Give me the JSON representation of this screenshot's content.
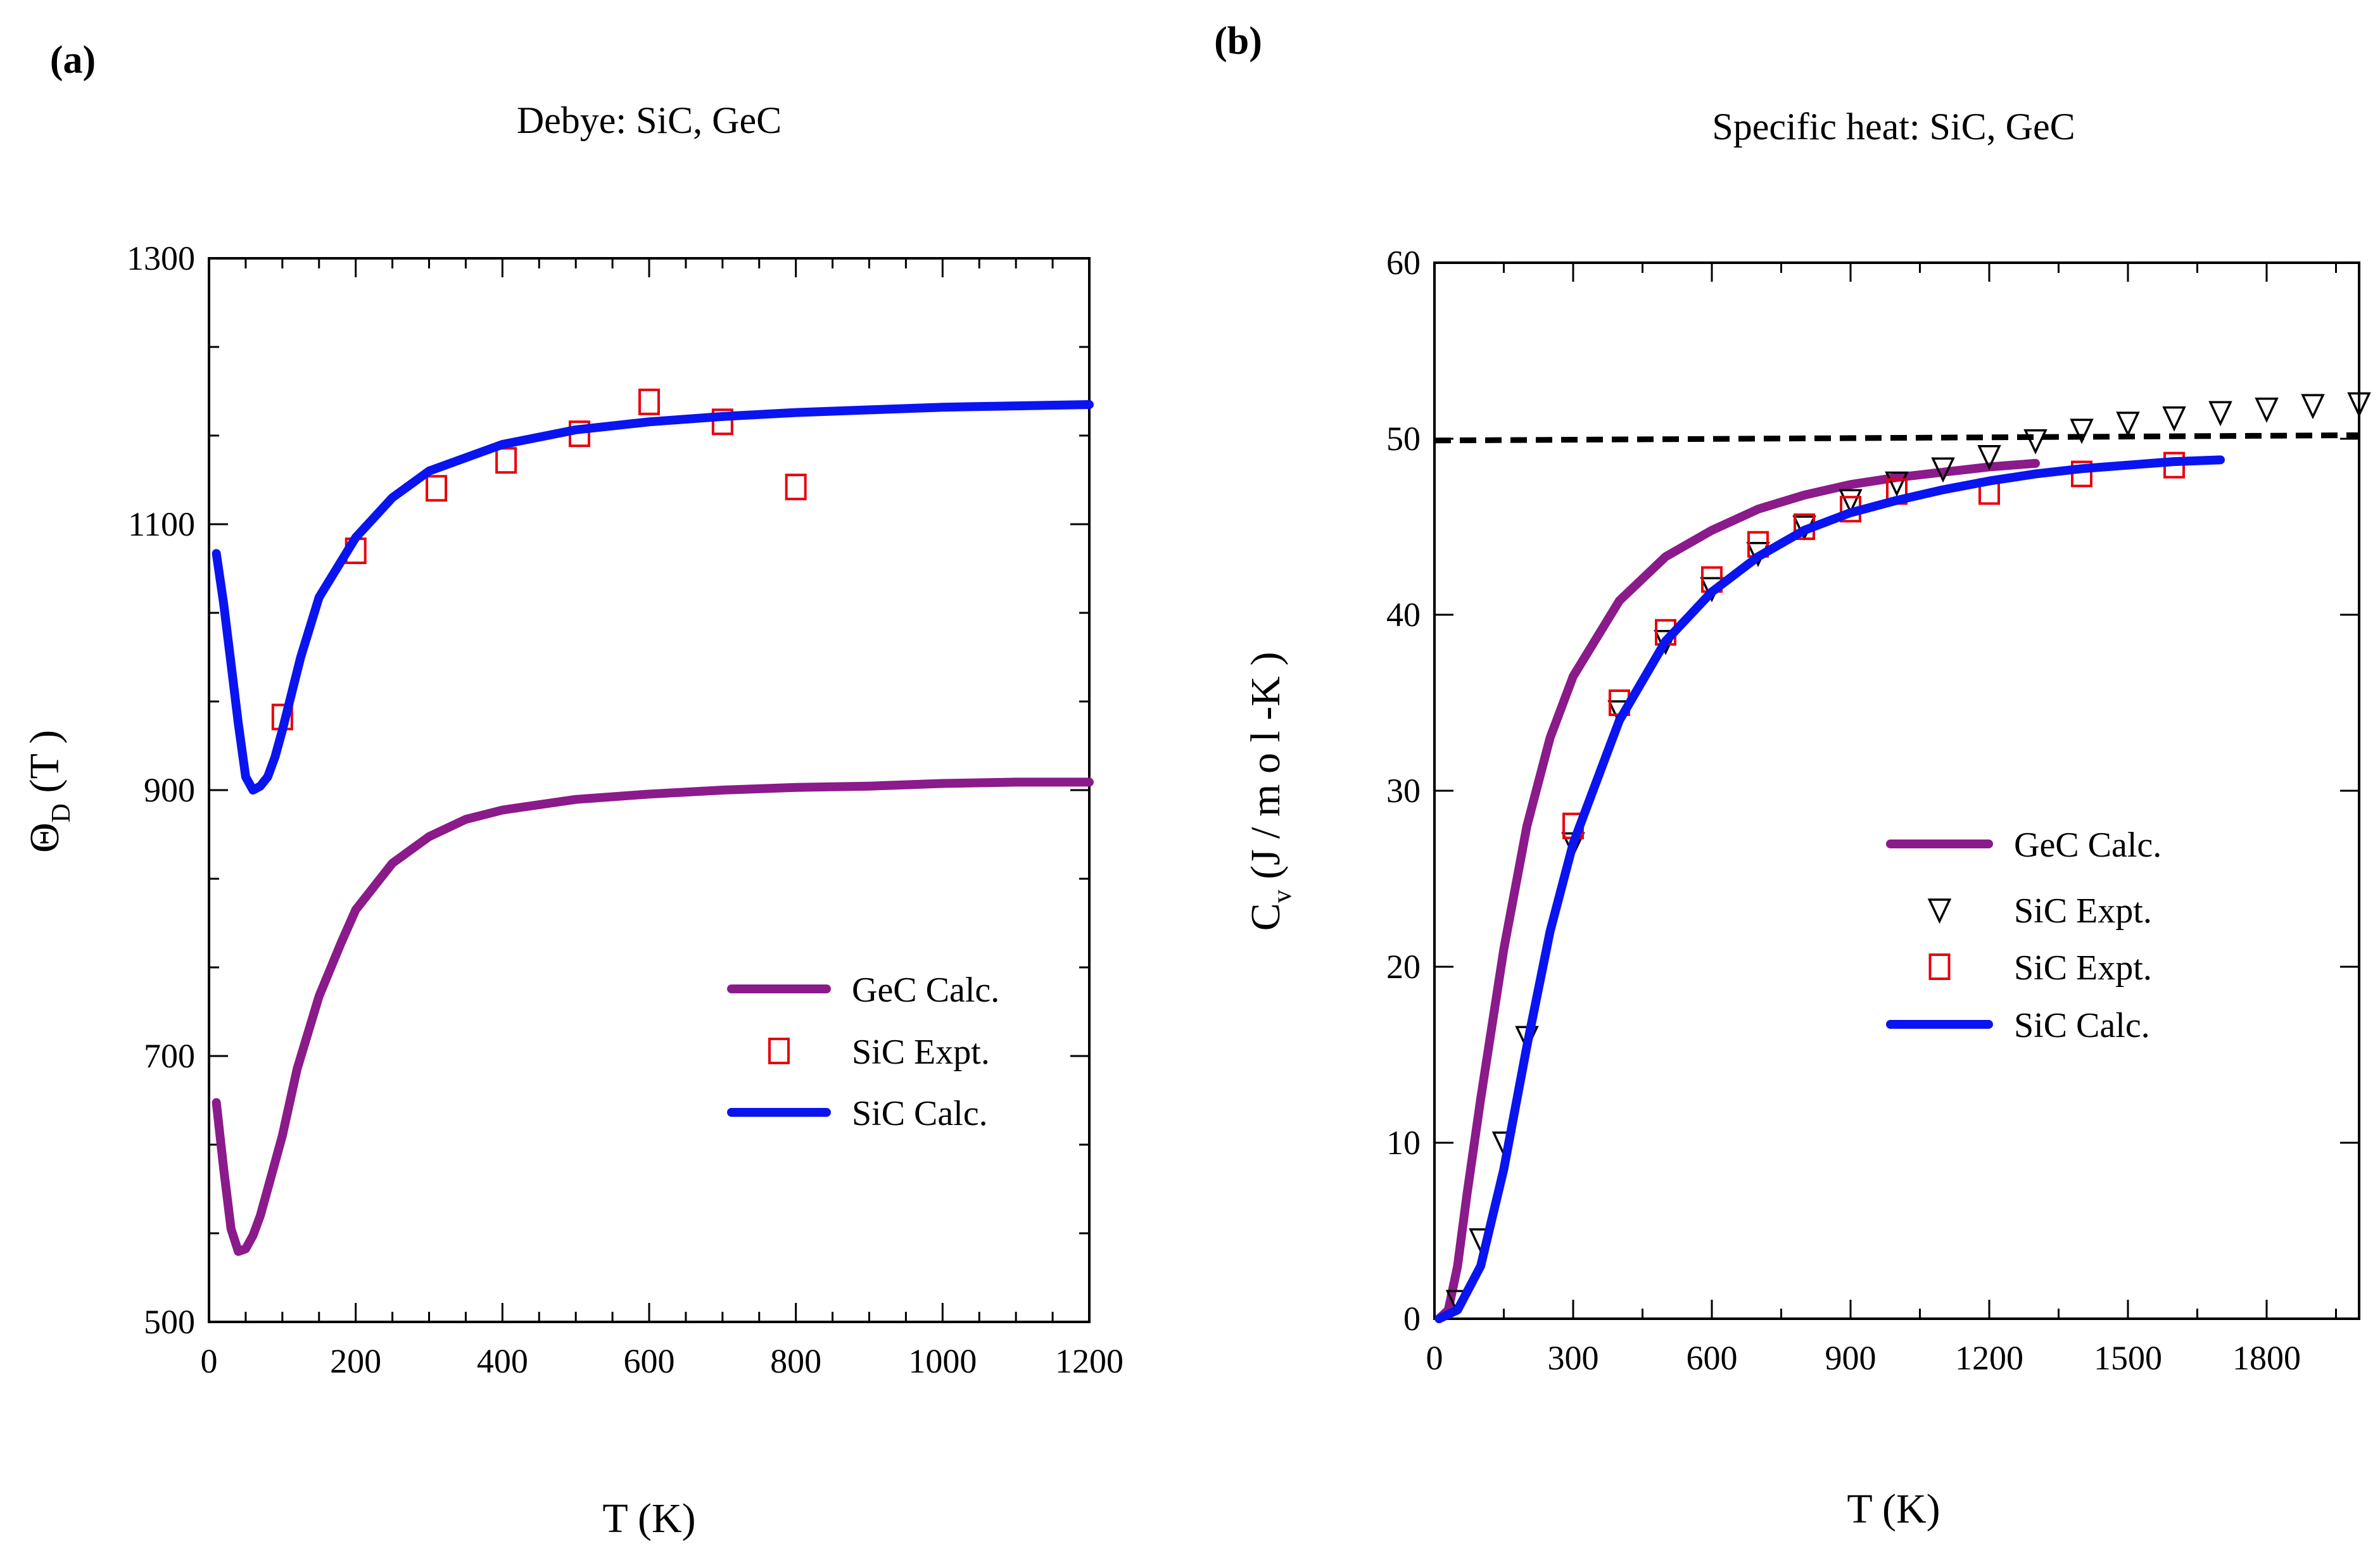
{
  "chart_data": [
    {
      "type": "line",
      "panel_label": "(a)",
      "title": "Debye: SiC, GeC",
      "xlabel": "T (K)",
      "ylabel": "Θ_D (T)",
      "ylabel_main": "Θ",
      "ylabel_sub": "D",
      "ylabel_rest": " (T )",
      "xlim": [
        0,
        1200
      ],
      "ylim": [
        500,
        1300
      ],
      "x_ticks": [
        0,
        200,
        400,
        600,
        800,
        1000,
        1200
      ],
      "y_ticks": [
        500,
        700,
        900,
        1100,
        1300
      ],
      "legend_position": "center-right",
      "series": [
        {
          "name": "GeC Calc.",
          "style": "line",
          "color": "#8b1a8b",
          "x": [
            10,
            20,
            30,
            40,
            50,
            60,
            70,
            80,
            100,
            120,
            150,
            180,
            200,
            250,
            300,
            350,
            400,
            500,
            600,
            700,
            800,
            900,
            1000,
            1100,
            1200
          ],
          "y": [
            665,
            615,
            570,
            553,
            555,
            565,
            580,
            600,
            640,
            690,
            745,
            785,
            810,
            845,
            865,
            878,
            885,
            893,
            897,
            900,
            902,
            903,
            905,
            906,
            906
          ]
        },
        {
          "name": "SiC Expt.",
          "style": "square",
          "color": "#e8000b",
          "x": [
            100,
            200,
            310,
            405,
            505,
            600,
            700,
            800
          ],
          "y": [
            955,
            1080,
            1127,
            1148,
            1168,
            1192,
            1177,
            1128
          ]
        },
        {
          "name": "SiC  Calc.",
          "style": "line",
          "color": "#0a14f0",
          "x": [
            10,
            20,
            30,
            40,
            50,
            60,
            70,
            80,
            90,
            100,
            125,
            150,
            200,
            250,
            300,
            400,
            500,
            600,
            700,
            800,
            900,
            1000,
            1100,
            1200
          ],
          "y": [
            1078,
            1040,
            995,
            950,
            910,
            900,
            903,
            910,
            925,
            945,
            1000,
            1045,
            1090,
            1120,
            1140,
            1160,
            1171,
            1177,
            1181,
            1184,
            1186,
            1188,
            1189,
            1190
          ]
        }
      ]
    },
    {
      "type": "line",
      "panel_label": "(b)",
      "title": "Specific heat: SiC, GeC",
      "xlabel": "T (K)",
      "ylabel": "C_v (J/mol-K)",
      "ylabel_main": "C",
      "ylabel_sub": "v",
      "ylabel_rest": "  (J / m o l -K )",
      "xlim": [
        0,
        2000
      ],
      "ylim": [
        0,
        60
      ],
      "x_ticks": [
        0,
        300,
        600,
        900,
        1200,
        1500,
        1800
      ],
      "y_ticks": [
        0,
        10,
        20,
        30,
        40,
        50,
        60
      ],
      "legend_position": "center-right",
      "reference_line": {
        "style": "dashed",
        "color": "#000000",
        "x": [
          0,
          2000
        ],
        "y": [
          49.9,
          50.2
        ]
      },
      "series": [
        {
          "name": "GeC Calc.",
          "style": "line",
          "color": "#8b1a8b",
          "x": [
            10,
            30,
            50,
            70,
            100,
            150,
            200,
            250,
            300,
            400,
            500,
            600,
            700,
            800,
            900,
            1000,
            1100,
            1200,
            1300
          ],
          "y": [
            0,
            0.5,
            3,
            7,
            12.5,
            21,
            28,
            33,
            36.5,
            40.8,
            43.3,
            44.8,
            46,
            46.8,
            47.4,
            47.8,
            48.1,
            48.4,
            48.6
          ]
        },
        {
          "name": "SiC  Expt.",
          "style": "triangle-down",
          "color": "#000000",
          "x": [
            50,
            100,
            150,
            200,
            300,
            400,
            500,
            600,
            700,
            800,
            900,
            1000,
            1100,
            1200,
            1300,
            1400,
            1500,
            1600,
            1700,
            1800,
            1900,
            2000
          ],
          "y": [
            1,
            4.5,
            10,
            16,
            27,
            34.5,
            38.5,
            41.5,
            43.5,
            45,
            46.5,
            47.5,
            48.3,
            49,
            49.9,
            50.5,
            50.9,
            51.2,
            51.5,
            51.7,
            51.9,
            52
          ]
        },
        {
          "name": "SiC  Expt.",
          "style": "square",
          "color": "#e8000b",
          "x": [
            300,
            400,
            500,
            600,
            700,
            800,
            900,
            1000,
            1200,
            1400,
            1600
          ],
          "y": [
            28,
            35,
            39,
            42,
            44,
            45,
            46,
            47,
            47,
            48,
            48.5
          ]
        },
        {
          "name": "SiC  Calc.",
          "style": "line",
          "color": "#0a14f0",
          "x": [
            10,
            50,
            100,
            150,
            200,
            250,
            300,
            400,
            500,
            600,
            700,
            800,
            900,
            1000,
            1100,
            1200,
            1300,
            1400,
            1500,
            1600,
            1700
          ],
          "y": [
            0,
            0.5,
            3,
            8.5,
            15.5,
            22,
            27,
            34,
            38.5,
            41.3,
            43.3,
            44.8,
            45.8,
            46.5,
            47.1,
            47.6,
            48,
            48.3,
            48.5,
            48.7,
            48.8
          ]
        }
      ]
    }
  ]
}
